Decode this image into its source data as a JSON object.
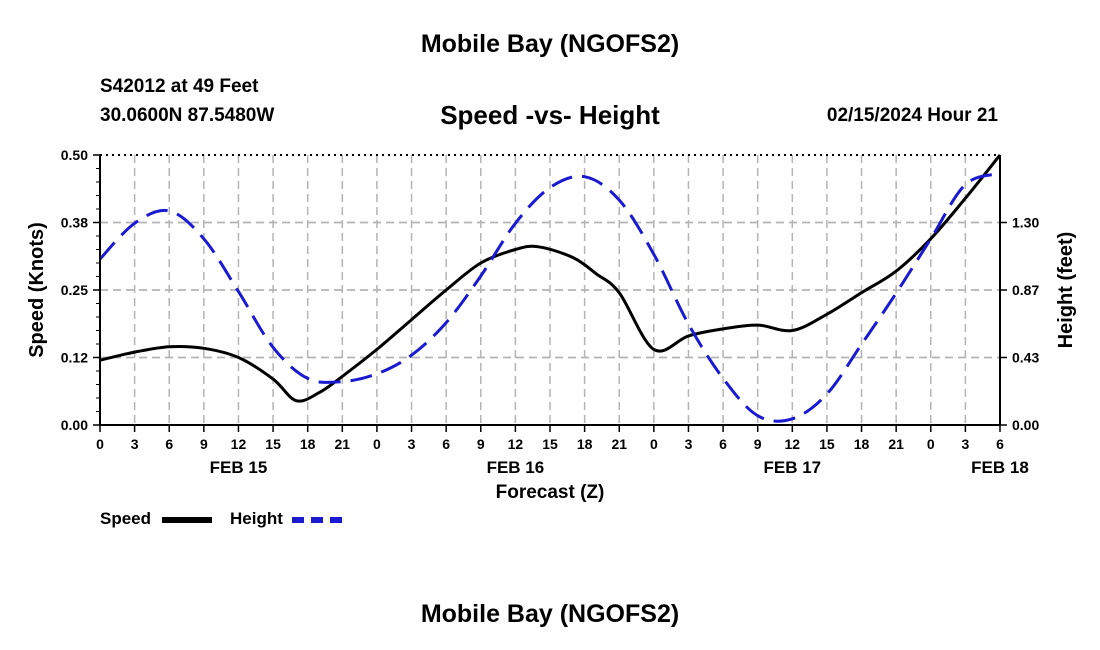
{
  "header": {
    "title": "Mobile Bay (NGOFS2)",
    "station": "S42012 at 49 Feet",
    "location": "30.0600N  87.5480W",
    "subtitle": "Speed -vs- Height",
    "timestamp": "02/15/2024 Hour 21"
  },
  "footer": {
    "title": "Mobile Bay (NGOFS2)"
  },
  "legend": {
    "speed_label": "Speed",
    "height_label": "Height"
  },
  "colors": {
    "speed": "#000000",
    "height": "#1a1ad0",
    "grid": "#b4b4b4"
  },
  "chart_data": {
    "type": "line",
    "title": "Speed -vs- Height",
    "xlabel": "Forecast (Z)",
    "ylabel": "Speed (Knots)",
    "y2label": "Height (feet)",
    "x_unit": "hours since FEB 15 00Z",
    "xlim": [
      0,
      78
    ],
    "ylim": [
      0,
      0.5
    ],
    "y2lim": [
      0,
      1.74
    ],
    "x_tick_labels": [
      "0",
      "3",
      "6",
      "9",
      "12",
      "15",
      "18",
      "21",
      "0",
      "3",
      "6",
      "9",
      "12",
      "15",
      "18",
      "21",
      "0",
      "3",
      "6",
      "9",
      "12",
      "15",
      "18",
      "21",
      "0",
      "3",
      "6"
    ],
    "y_tick_labels": [
      "0.00",
      "0.12",
      "0.25",
      "0.38",
      "0.50"
    ],
    "y_tick_values": [
      0,
      0.125,
      0.25,
      0.375,
      0.5
    ],
    "y2_tick_labels": [
      "0.00",
      "0.43",
      "0.87",
      "1.30"
    ],
    "y2_tick_values": [
      0,
      0.435,
      0.87,
      1.305
    ],
    "date_labels": [
      {
        "x": 12,
        "label": "FEB 15"
      },
      {
        "x": 36,
        "label": "FEB 16"
      },
      {
        "x": 60,
        "label": "FEB 17"
      },
      {
        "x": 78,
        "label": "FEB 18"
      }
    ],
    "grid": true,
    "legend_position": "bottom-left",
    "series": [
      {
        "name": "Speed",
        "axis": "left",
        "style": "solid",
        "x": [
          0,
          3,
          6,
          9,
          12,
          15,
          17,
          19,
          21,
          24,
          27,
          30,
          33,
          36,
          38,
          41,
          43,
          45,
          48,
          51,
          54,
          57,
          60,
          63,
          66,
          69,
          72,
          75,
          78
        ],
        "values": [
          0.12,
          0.135,
          0.145,
          0.142,
          0.125,
          0.085,
          0.045,
          0.06,
          0.09,
          0.14,
          0.195,
          0.25,
          0.3,
          0.325,
          0.33,
          0.31,
          0.28,
          0.245,
          0.14,
          0.165,
          0.178,
          0.185,
          0.175,
          0.205,
          0.245,
          0.285,
          0.345,
          0.42,
          0.5
        ]
      },
      {
        "name": "Height",
        "axis": "right",
        "style": "dashed",
        "x": [
          0,
          3,
          6,
          9,
          12,
          15,
          18,
          21,
          24,
          27,
          30,
          33,
          36,
          39,
          42,
          45,
          48,
          51,
          54,
          57,
          60,
          63,
          66,
          69,
          72,
          75,
          78
        ],
        "values": [
          1.07,
          1.3,
          1.38,
          1.2,
          0.86,
          0.5,
          0.3,
          0.28,
          0.33,
          0.45,
          0.66,
          0.96,
          1.3,
          1.53,
          1.6,
          1.45,
          1.1,
          0.65,
          0.3,
          0.06,
          0.04,
          0.2,
          0.52,
          0.85,
          1.2,
          1.55,
          1.62
        ]
      }
    ]
  }
}
